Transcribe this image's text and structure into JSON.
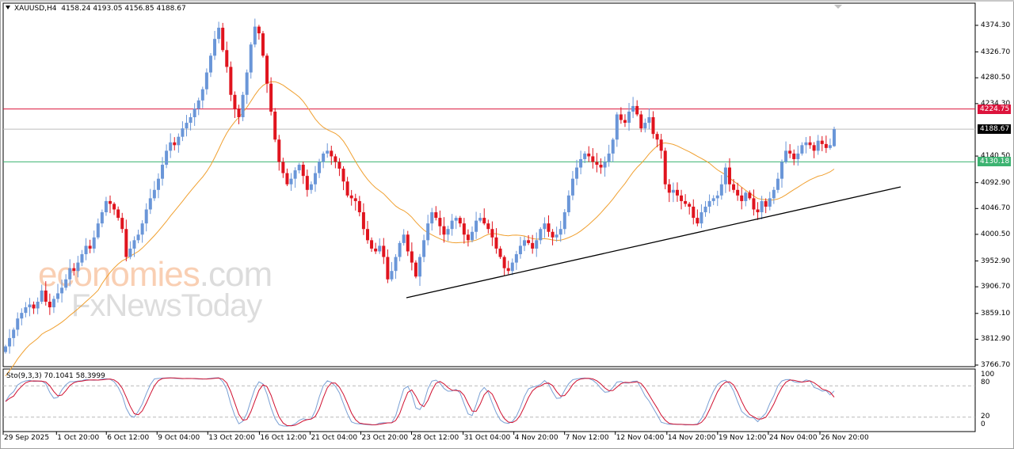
{
  "header": {
    "symbol": "XAUUSD,H4",
    "ohlc": "4158.24 4193.05 4156.85 4188.67",
    "title_full": "XAUUSD,H4  4158.24 4193.05 4156.85 4188.67"
  },
  "watermark": {
    "line1_brand": "economies",
    "line1_suffix": ".com",
    "line2": "FxNewsToday"
  },
  "price_axis": {
    "ticks": [
      {
        "label": "4374.30",
        "value": 4374.3
      },
      {
        "label": "4326.70",
        "value": 4326.7
      },
      {
        "label": "4280.50",
        "value": 4280.5
      },
      {
        "label": "4234.30",
        "value": 4234.3
      },
      {
        "label": "4140.50",
        "value": 4140.5
      },
      {
        "label": "4092.90",
        "value": 4092.9
      },
      {
        "label": "4046.70",
        "value": 4046.7
      },
      {
        "label": "4000.50",
        "value": 4000.5
      },
      {
        "label": "3952.90",
        "value": 3952.9
      },
      {
        "label": "3906.70",
        "value": 3906.7
      },
      {
        "label": "3859.10",
        "value": 3859.1
      },
      {
        "label": "3812.90",
        "value": 3812.9
      },
      {
        "label": "3766.70",
        "value": 3766.7
      }
    ],
    "tags": [
      {
        "label": "4224.75",
        "value": 4224.75,
        "color": "#dc143c",
        "name": "resistance-level"
      },
      {
        "label": "4188.67",
        "value": 4188.67,
        "color": "#000000",
        "name": "current-price"
      },
      {
        "label": "4130.18",
        "value": 4130.18,
        "color": "#3cb371",
        "name": "support-level"
      }
    ]
  },
  "stochastic": {
    "label": "Sto(9,3,3) 70.1041 58.3999",
    "params": "9,3,3",
    "main_value": 70.1041,
    "signal_value": 58.3999,
    "axis_ticks": [
      "100",
      "80",
      "20",
      "0"
    ],
    "levels": [
      80,
      20
    ]
  },
  "time_axis": {
    "labels": [
      {
        "label": "29 Sep 2025",
        "x": 5
      },
      {
        "label": "1 Oct 20:00",
        "x": 67
      },
      {
        "label": "6 Oct 12:00",
        "x": 125
      },
      {
        "label": "9 Oct 04:00",
        "x": 184
      },
      {
        "label": "13 Oct 20:00",
        "x": 243
      },
      {
        "label": "16 Oct 12:00",
        "x": 303
      },
      {
        "label": "21 Oct 04:00",
        "x": 362
      },
      {
        "label": "23 Oct 20:00",
        "x": 421
      },
      {
        "label": "28 Oct 12:00",
        "x": 480
      },
      {
        "label": "31 Oct 04:00",
        "x": 540
      },
      {
        "label": "4 Nov 20:00",
        "x": 599
      },
      {
        "label": "7 Nov 12:00",
        "x": 658
      },
      {
        "label": "12 Nov 04:00",
        "x": 717
      },
      {
        "label": "14 Nov 20:00",
        "x": 777
      },
      {
        "label": "19 Nov 12:00",
        "x": 836
      },
      {
        "label": "24 Nov 04:00",
        "x": 895
      },
      {
        "label": "26 Nov 20:00",
        "x": 955
      }
    ]
  },
  "colors": {
    "bull": "#6a96d8",
    "bear": "#e0141e",
    "ma": "#f0a030",
    "trendline": "#000000",
    "stoch_main": "#7aa0d4",
    "stoch_signal": "#d01030",
    "grid_level": "#b8b8b8",
    "current_line": "#bdbdbd"
  },
  "chart_data": {
    "type": "candlestick",
    "title": "XAUUSD,H4",
    "symbol": "XAUUSD",
    "timeframe": "H4",
    "last_bar": {
      "open": 4158.24,
      "high": 4193.05,
      "low": 4156.85,
      "close": 4188.67
    },
    "ylim": [
      3766.7,
      4380.0
    ],
    "x_range": [
      "29 Sep 2025",
      "27 Nov 2025"
    ],
    "horizontal_lines": [
      {
        "name": "resistance",
        "value": 4224.75,
        "color": "#dc143c"
      },
      {
        "name": "current price",
        "value": 4188.67,
        "color": "#bdbdbd"
      },
      {
        "name": "support",
        "value": 4130.18,
        "color": "#3cb371"
      }
    ],
    "trendline": {
      "from": {
        "date": "28 Oct 2025",
        "price": 3888
      },
      "to": {
        "date": "28 Nov 2025",
        "price": 4086
      },
      "description": "rising support trendline"
    },
    "moving_average": {
      "color": "orange",
      "description": "moving average following price, peaks ~4190 around 23 Oct, dips ~3985 around 4 Nov, ~4100 at end"
    },
    "key_points": [
      {
        "date": "29 Sep 2025",
        "price": 3800,
        "note": "start"
      },
      {
        "date": "16 Oct 2025",
        "price": 4375,
        "note": "first peak"
      },
      {
        "date": "20 Oct 2025",
        "price": 4381,
        "note": "all-time high area"
      },
      {
        "date": "28 Oct 2025",
        "price": 3888,
        "note": "swing low"
      },
      {
        "date": "13 Nov 2025",
        "price": 4245,
        "note": "lower high"
      },
      {
        "date": "18 Nov 2025",
        "price": 4000,
        "note": "higher low"
      },
      {
        "date": "27 Nov 2025",
        "price": 4188.67,
        "note": "last close"
      }
    ],
    "candles_close_series": [
      3800,
      3815,
      3830,
      3850,
      3860,
      3870,
      3875,
      3868,
      3880,
      3900,
      3880,
      3870,
      3885,
      3895,
      3905,
      3920,
      3940,
      3935,
      3950,
      3965,
      3980,
      3975,
      3995,
      4020,
      4040,
      4060,
      4055,
      4045,
      4030,
      4010,
      3960,
      3975,
      3990,
      4000,
      4020,
      4045,
      4065,
      4080,
      4100,
      4125,
      4150,
      4165,
      4160,
      4175,
      4190,
      4200,
      4210,
      4225,
      4240,
      4260,
      4290,
      4320,
      4350,
      4370,
      4330,
      4300,
      4250,
      4225,
      4210,
      4250,
      4290,
      4340,
      4372,
      4360,
      4320,
      4270,
      4220,
      4170,
      4130,
      4110,
      4090,
      4100,
      4115,
      4125,
      4105,
      4080,
      4090,
      4110,
      4130,
      4145,
      4150,
      4140,
      4130,
      4118,
      4095,
      4070,
      4065,
      4060,
      4040,
      4010,
      3990,
      3975,
      3970,
      3980,
      3960,
      3920,
      3935,
      3960,
      3985,
      4000,
      3970,
      3950,
      3925,
      3960,
      3990,
      4020,
      4040,
      4030,
      4015,
      4000,
      4010,
      4025,
      4030,
      4020,
      4000,
      3990,
      4005,
      4025,
      4030,
      4020,
      4010,
      3995,
      3975,
      3960,
      3940,
      3935,
      3950,
      3965,
      3980,
      3990,
      3985,
      3975,
      3990,
      4010,
      4020,
      4005,
      3995,
      4000,
      4010,
      4040,
      4070,
      4100,
      4120,
      4135,
      4145,
      4140,
      4130,
      4125,
      4120,
      4130,
      4145,
      4170,
      4215,
      4205,
      4200,
      4220,
      4230,
      4215,
      4190,
      4200,
      4210,
      4180,
      4170,
      4150,
      4090,
      4075,
      4080,
      4070,
      4060,
      4055,
      4050,
      4030,
      4020,
      4040,
      4050,
      4060,
      4065,
      4070,
      4090,
      4120,
      4090,
      4080,
      4070,
      4060,
      4075,
      4065,
      4045,
      4040,
      4060,
      4050,
      4065,
      4080,
      4100,
      4130,
      4150,
      4145,
      4135,
      4145,
      4160,
      4165,
      4160,
      4150,
      4168,
      4162,
      4155,
      4160,
      4188.67
    ],
    "stochastic": {
      "type": "line",
      "ylim": [
        0,
        100
      ],
      "levels": [
        20,
        80
      ],
      "series": [
        {
          "name": "%K (9,3,3)",
          "last": 70.1041
        },
        {
          "name": "%D",
          "last": 58.3999
        }
      ]
    }
  }
}
